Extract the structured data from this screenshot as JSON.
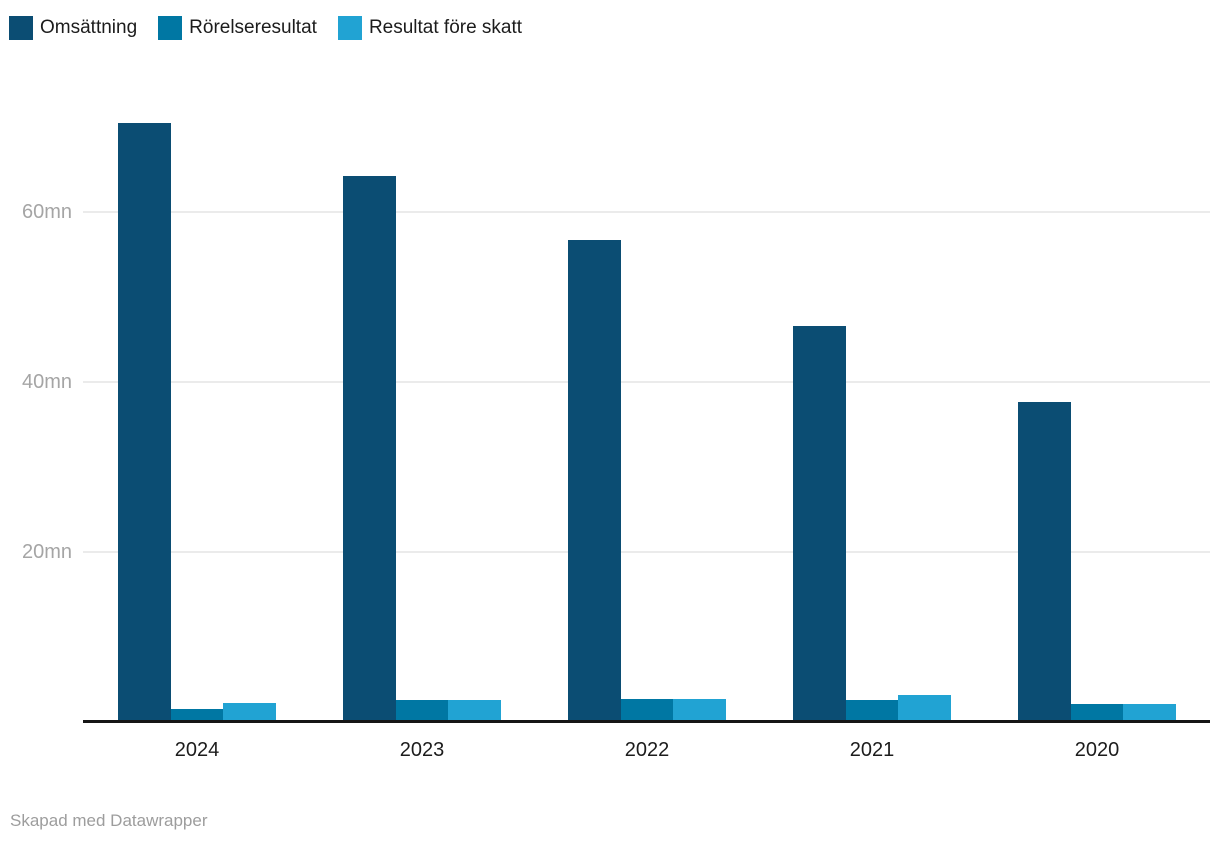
{
  "legend": {
    "items": [
      {
        "label": "Omsättning",
        "color": "#0b4d73"
      },
      {
        "label": "Rörelseresultat",
        "color": "#0077a3"
      },
      {
        "label": "Resultat före skatt",
        "color": "#21a3d3"
      }
    ]
  },
  "chart_data": {
    "type": "bar",
    "categories": [
      "2024",
      "2023",
      "2022",
      "2021",
      "2020"
    ],
    "series": [
      {
        "name": "Omsättning",
        "color": "#0b4d73",
        "values": [
          70.5,
          64.2,
          56.7,
          46.6,
          37.6
        ]
      },
      {
        "name": "Rörelseresultat",
        "color": "#0077a3",
        "values": [
          1.5,
          2.6,
          2.7,
          2.6,
          2.1
        ]
      },
      {
        "name": "Resultat före skatt",
        "color": "#21a3d3",
        "values": [
          2.2,
          2.6,
          2.7,
          3.2,
          2.1
        ]
      }
    ],
    "unit": "mn",
    "yticks": [
      {
        "value": 20,
        "label": "20mn"
      },
      {
        "value": 40,
        "label": "40mn"
      },
      {
        "value": 60,
        "label": "60mn"
      }
    ],
    "ylim": [
      0,
      74
    ],
    "grid": true,
    "legend_position": "top-left",
    "title": "",
    "xlabel": "",
    "ylabel": ""
  },
  "footer": {
    "credit": "Skapad med Datawrapper"
  },
  "colors": {
    "background": "#ffffff",
    "grid": "#ebebeb",
    "axis": "#161616",
    "tick_label": "#a5a5a5",
    "category_label": "#1c1c1c",
    "footer_text": "#9d9d9d"
  }
}
